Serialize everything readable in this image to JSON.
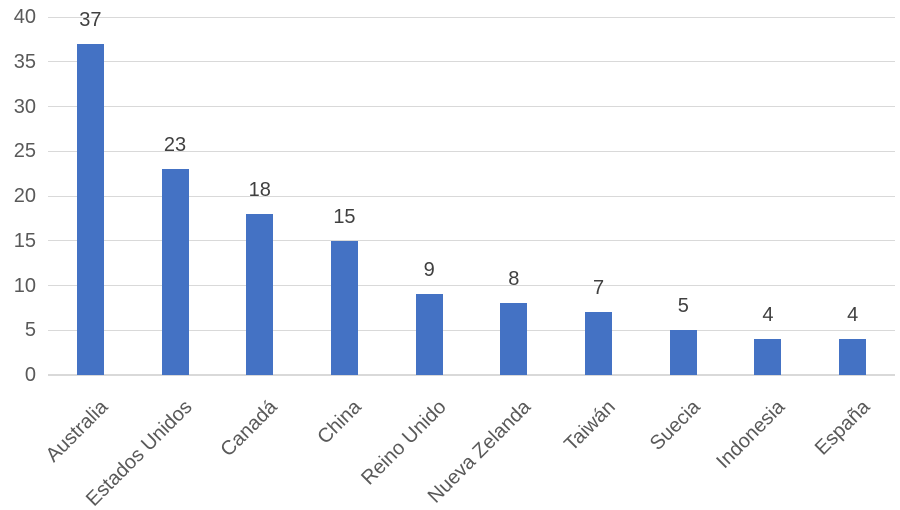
{
  "chart_data": {
    "type": "bar",
    "title": "",
    "xlabel": "",
    "ylabel": "",
    "categories": [
      "Australia",
      "Estados Unidos",
      "Canadá",
      "China",
      "Reino Unido",
      "Nueva Zelanda",
      "Taiwán",
      "Suecia",
      "Indonesia",
      "España"
    ],
    "values": [
      37,
      23,
      18,
      15,
      9,
      8,
      7,
      5,
      4,
      4
    ],
    "ylim": [
      0,
      40
    ],
    "yticks": [
      0,
      5,
      10,
      15,
      20,
      25,
      30,
      35,
      40
    ],
    "grid": true,
    "legend": false,
    "data_labels_shown": true,
    "category_label_rotation_deg": -45,
    "colors": {
      "bar": "#4472C4",
      "gridline": "#D9D9D9",
      "axis_line": "#D9D9D9",
      "tick_label": "#595959",
      "category_label": "#595959",
      "data_label": "#404040"
    }
  }
}
